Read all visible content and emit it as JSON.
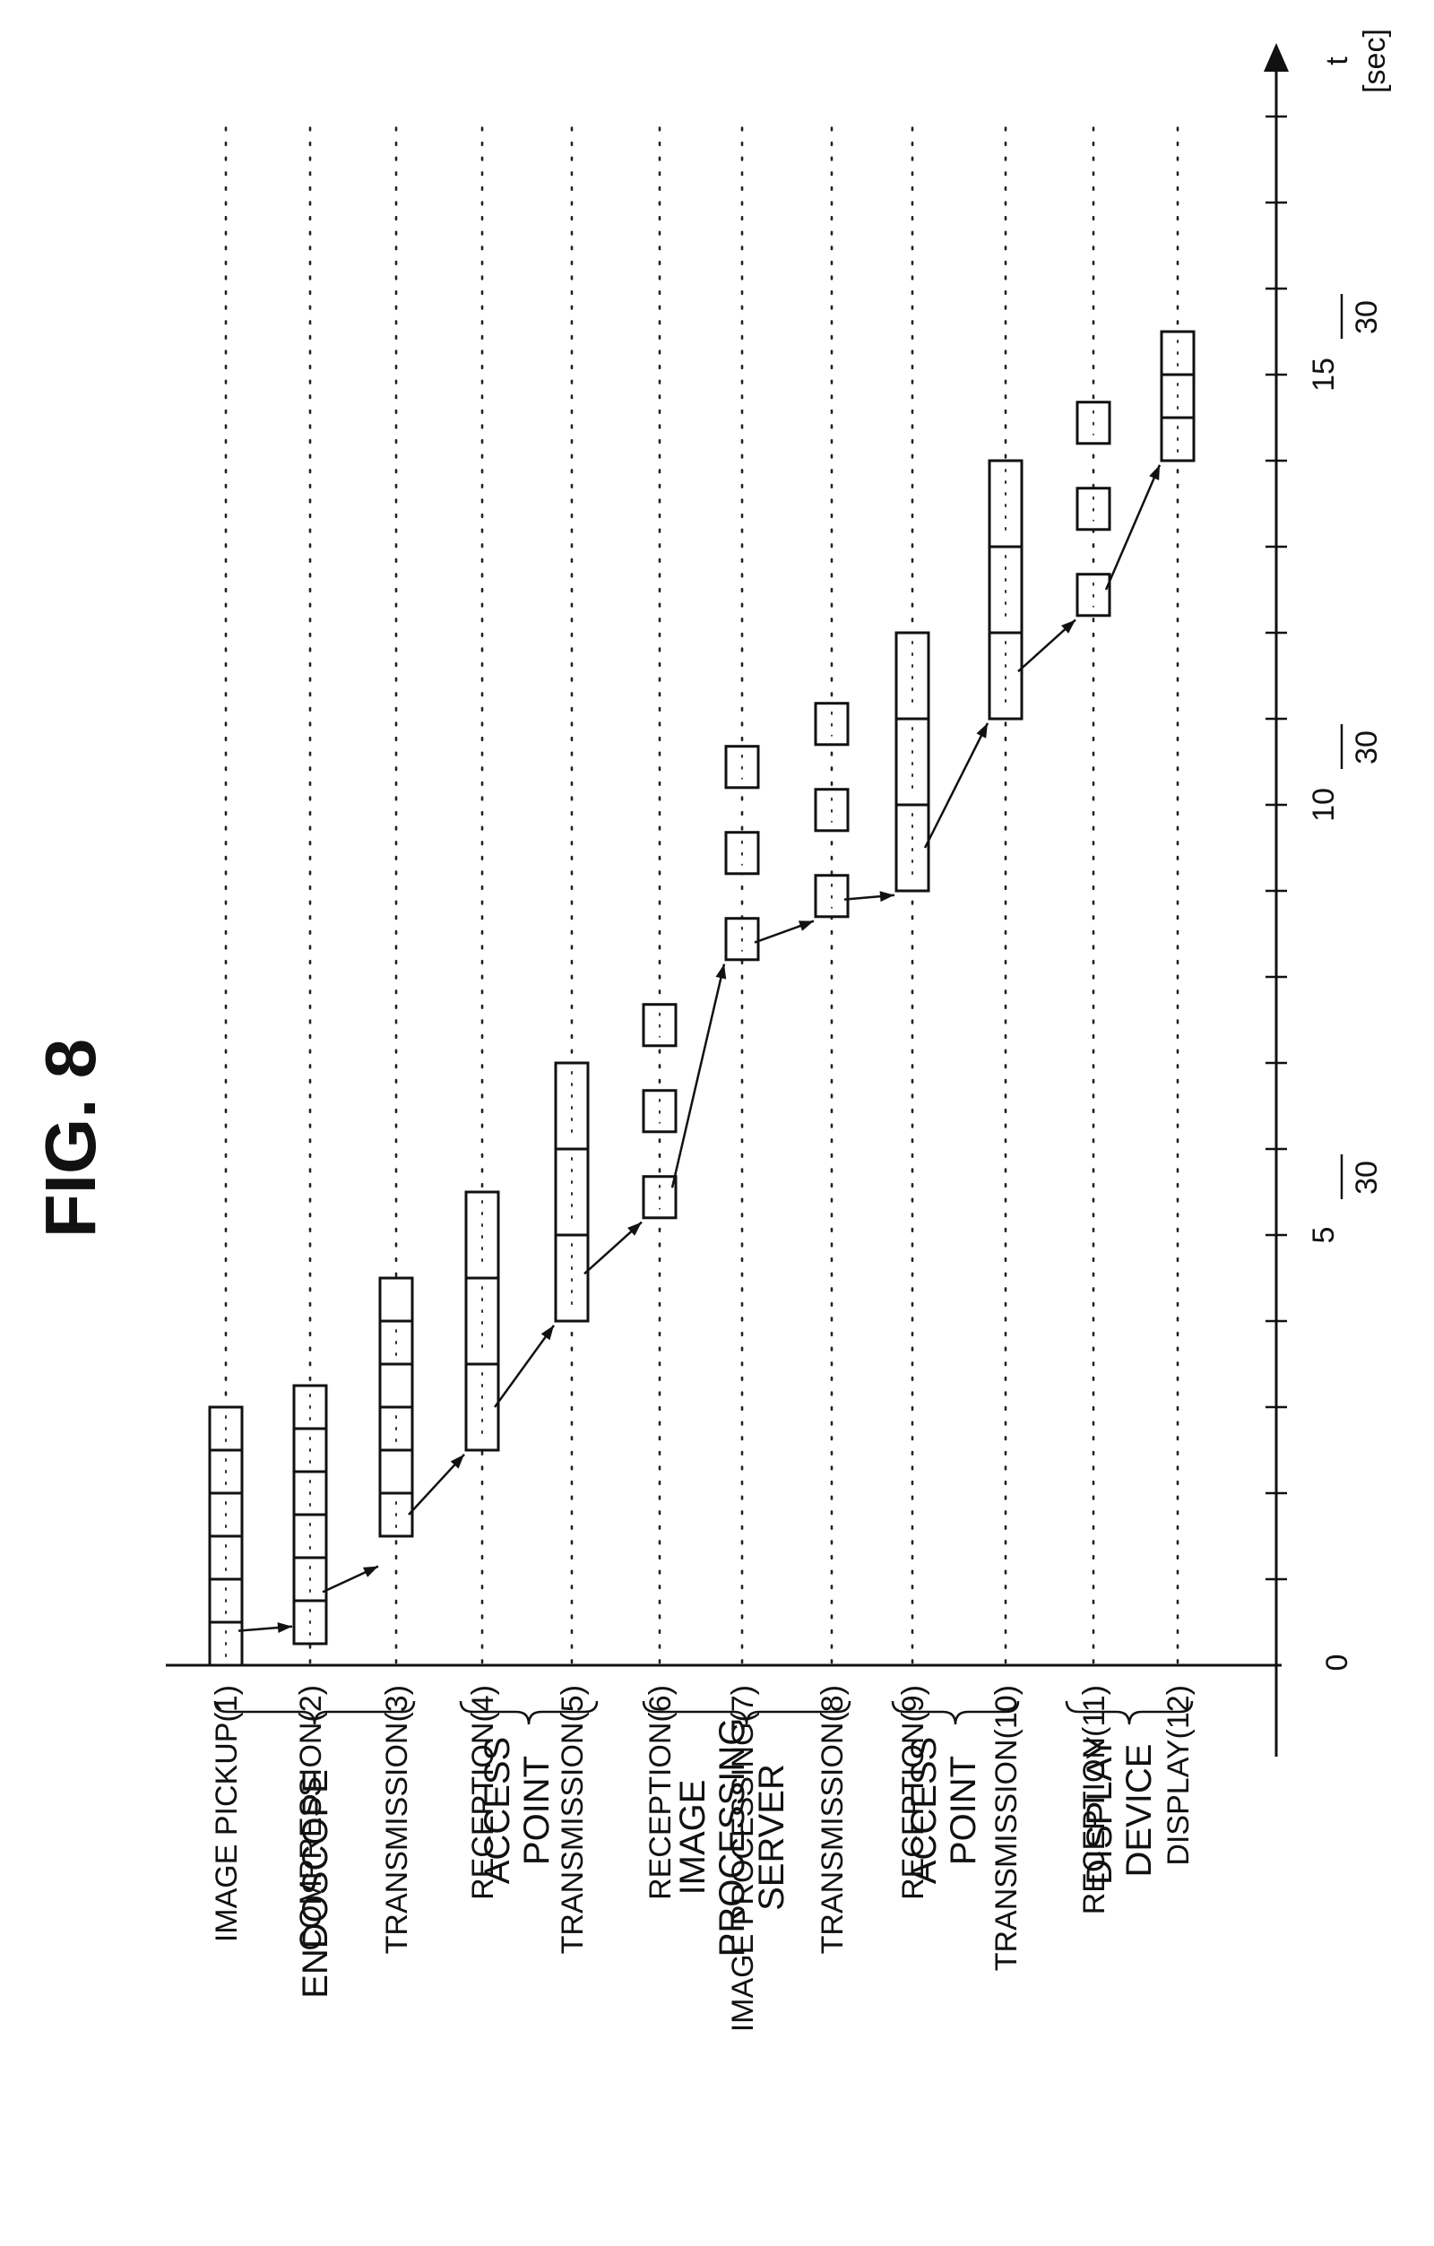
{
  "title": "FIG. 8",
  "axis": {
    "label": "t",
    "unit": "[sec]",
    "origin": "0"
  },
  "ticks": [
    {
      "num": "5",
      "den": "30"
    },
    {
      "num": "10",
      "den": "30"
    },
    {
      "num": "15",
      "den": "30"
    }
  ],
  "rows": [
    {
      "label": "IMAGE PICKUP(1)"
    },
    {
      "label": "COMPRESSION(2)"
    },
    {
      "label": "TRANSMISSION(3)"
    },
    {
      "label": "RECEPTION(4)"
    },
    {
      "label": "TRANSMISSION(5)"
    },
    {
      "label": "RECEPTION(6)"
    },
    {
      "label": "IMAGE PROCESSING(7)"
    },
    {
      "label": "TRANSMISSION(8)"
    },
    {
      "label": "RECEPTION(9)"
    },
    {
      "label": "TRANSMISSION(10)"
    },
    {
      "label": "RECEPTION(11)"
    },
    {
      "label": "DISPLAY(12)"
    }
  ],
  "groups": [
    {
      "lines": [
        "ENDOSCOPE"
      ]
    },
    {
      "lines": [
        "ACCESS",
        "POINT"
      ]
    },
    {
      "lines": [
        "IMAGE",
        "PROCESSING",
        "SERVER"
      ]
    },
    {
      "lines": [
        "ACCESS",
        "POINT"
      ]
    },
    {
      "lines": [
        "DISPLAY",
        "DEVICE"
      ]
    }
  ]
}
